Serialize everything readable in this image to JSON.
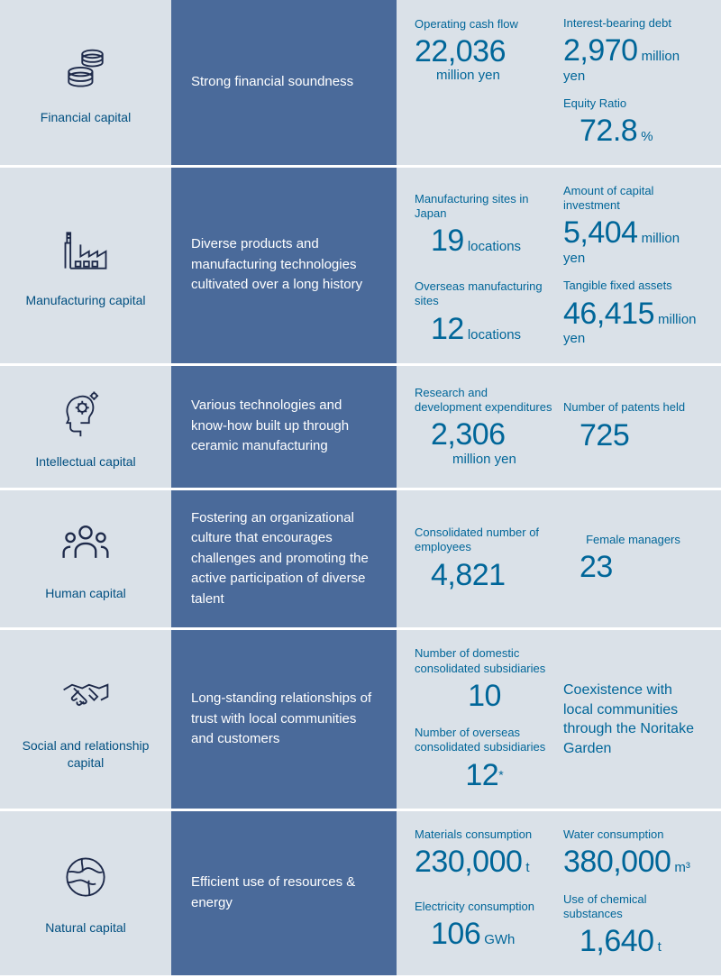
{
  "colors": {
    "light_bg": "#dae1e8",
    "blue_bg": "#4a6a9a",
    "text_teal": "#006699",
    "icon_navy": "#1e2a4a",
    "white": "#ffffff"
  },
  "rows": [
    {
      "icon": "financial",
      "icon_label": "Financial capital",
      "desc": "Strong financial soundness",
      "metrics": [
        {
          "label": "Operating cash flow",
          "num": "22,036",
          "unit": "million yen",
          "unit_below": true
        },
        {
          "label": "Interest-bearing debt",
          "num": "2,970",
          "unit": "million yen"
        },
        null,
        {
          "label": "Equity Ratio",
          "num": "72.8",
          "unit": "%",
          "indent": true
        }
      ]
    },
    {
      "icon": "manufacturing",
      "icon_label": "Manufacturing capital",
      "desc": "Diverse products and manufacturing technologies cultivated over a long history",
      "metrics": [
        {
          "label": "Manufacturing sites in Japan",
          "num": "19",
          "unit": "locations",
          "indent": true
        },
        {
          "label": "Amount of capital investment",
          "num": "5,404",
          "unit": "million yen"
        },
        {
          "label": "Overseas manufacturing sites",
          "num": "12",
          "unit": "locations",
          "indent": true
        },
        {
          "label": "Tangible fixed assets",
          "num": "46,415",
          "unit": "million yen"
        }
      ]
    },
    {
      "icon": "intellectual",
      "icon_label": "Intellectual capital",
      "desc": "Various technologies and know-how built up through ceramic manufacturing",
      "metrics": [
        {
          "label": "Research and development expenditures",
          "num": "2,306",
          "unit": "million yen",
          "unit_below": true,
          "indent": true
        },
        {
          "label": "Number of patents held",
          "num": "725",
          "indent": true
        }
      ]
    },
    {
      "icon": "human",
      "icon_label": "Human capital",
      "desc": "Fostering an organizational culture that encourages challenges and promoting the active participation of diverse talent",
      "metrics": [
        {
          "label": "Consolidated number of employees",
          "num": "4,821",
          "indent": true
        },
        {
          "label": "Female managers",
          "num": "23",
          "center_label": true,
          "indent": true
        }
      ]
    },
    {
      "icon": "social",
      "icon_label": "Social and relationship capital",
      "desc": "Long-standing relationships of trust with local communities and customers",
      "metrics": [
        {
          "label": "Number of domestic consolidated subsidiaries",
          "num": "10",
          "center_num": true
        },
        {
          "text": "Coexistence with local communities through the Noritake Garden",
          "rowspan": 2
        },
        {
          "label": "Number of overseas consolidated subsidiaries",
          "num": "12",
          "sup": "*",
          "center_num": true
        }
      ]
    },
    {
      "icon": "natural",
      "icon_label": "Natural capital",
      "desc": "Efficient use of resources & energy",
      "metrics": [
        {
          "label": "Materials consumption",
          "num": "230,000",
          "unit": "t"
        },
        {
          "label": "Water consumption",
          "num": "380,000",
          "unit": "m³"
        },
        {
          "label": "Electricity consumption",
          "num": "106",
          "unit": "GWh",
          "indent": true
        },
        {
          "label": "Use of chemical substances",
          "num": "1,640",
          "unit": "t",
          "indent": true
        }
      ]
    }
  ]
}
